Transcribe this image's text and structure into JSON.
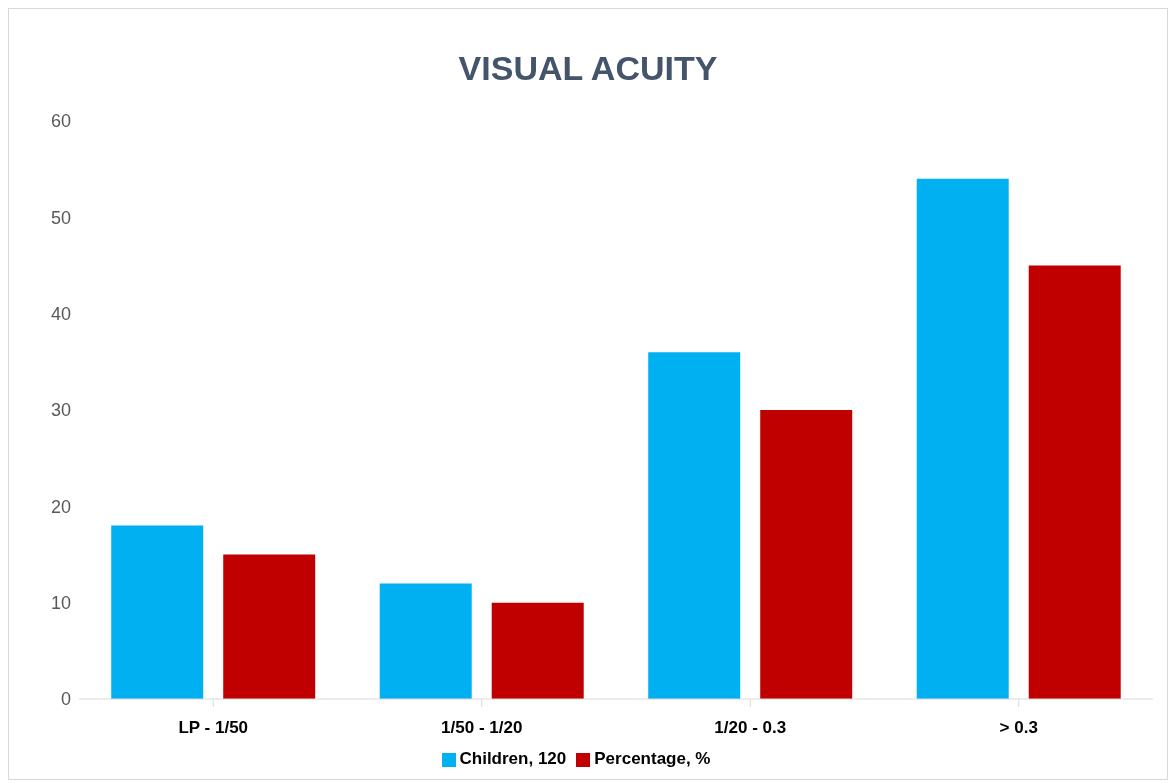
{
  "chart_data": {
    "type": "bar",
    "title": "VISUAL ACUITY",
    "categories": [
      "LP - 1/50",
      "1/50 - 1/20",
      "1/20 - 0.3",
      "> 0.3"
    ],
    "series": [
      {
        "name": "Children, 120",
        "color": "#00b0f0",
        "values": [
          18,
          12,
          36,
          54
        ]
      },
      {
        "name": "Percentage, %",
        "color": "#c00000",
        "values": [
          15,
          10,
          30,
          45
        ]
      }
    ],
    "ylim": [
      0,
      60
    ],
    "yticks": [
      0,
      10,
      20,
      30,
      40,
      50,
      60
    ],
    "grid": false,
    "legend": "bottom"
  }
}
